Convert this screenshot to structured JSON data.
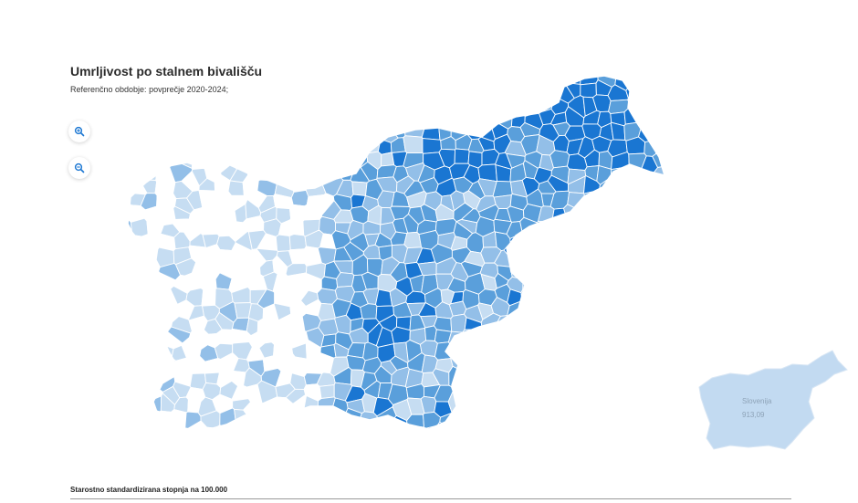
{
  "header": {
    "title": "Umrljivost po stalnem bivališču",
    "subtitle": "Referenčno obdobje: povprečje 2020-2024;"
  },
  "zoom": {
    "in_icon": "zoom-in-icon",
    "out_icon": "zoom-out-icon"
  },
  "colors": {
    "class1": "#ffffff",
    "class2": "#c6ddf2",
    "class3": "#93bfe8",
    "class4": "#5a9fdb",
    "class5": "#1a76d2",
    "border": "#ffffff",
    "inset_fill": "#c2daf1"
  },
  "inset": {
    "name": "Slovenija",
    "value": "913,09"
  },
  "legend": {
    "title": "Starostno standardizirana stopnja na 100.000"
  }
}
